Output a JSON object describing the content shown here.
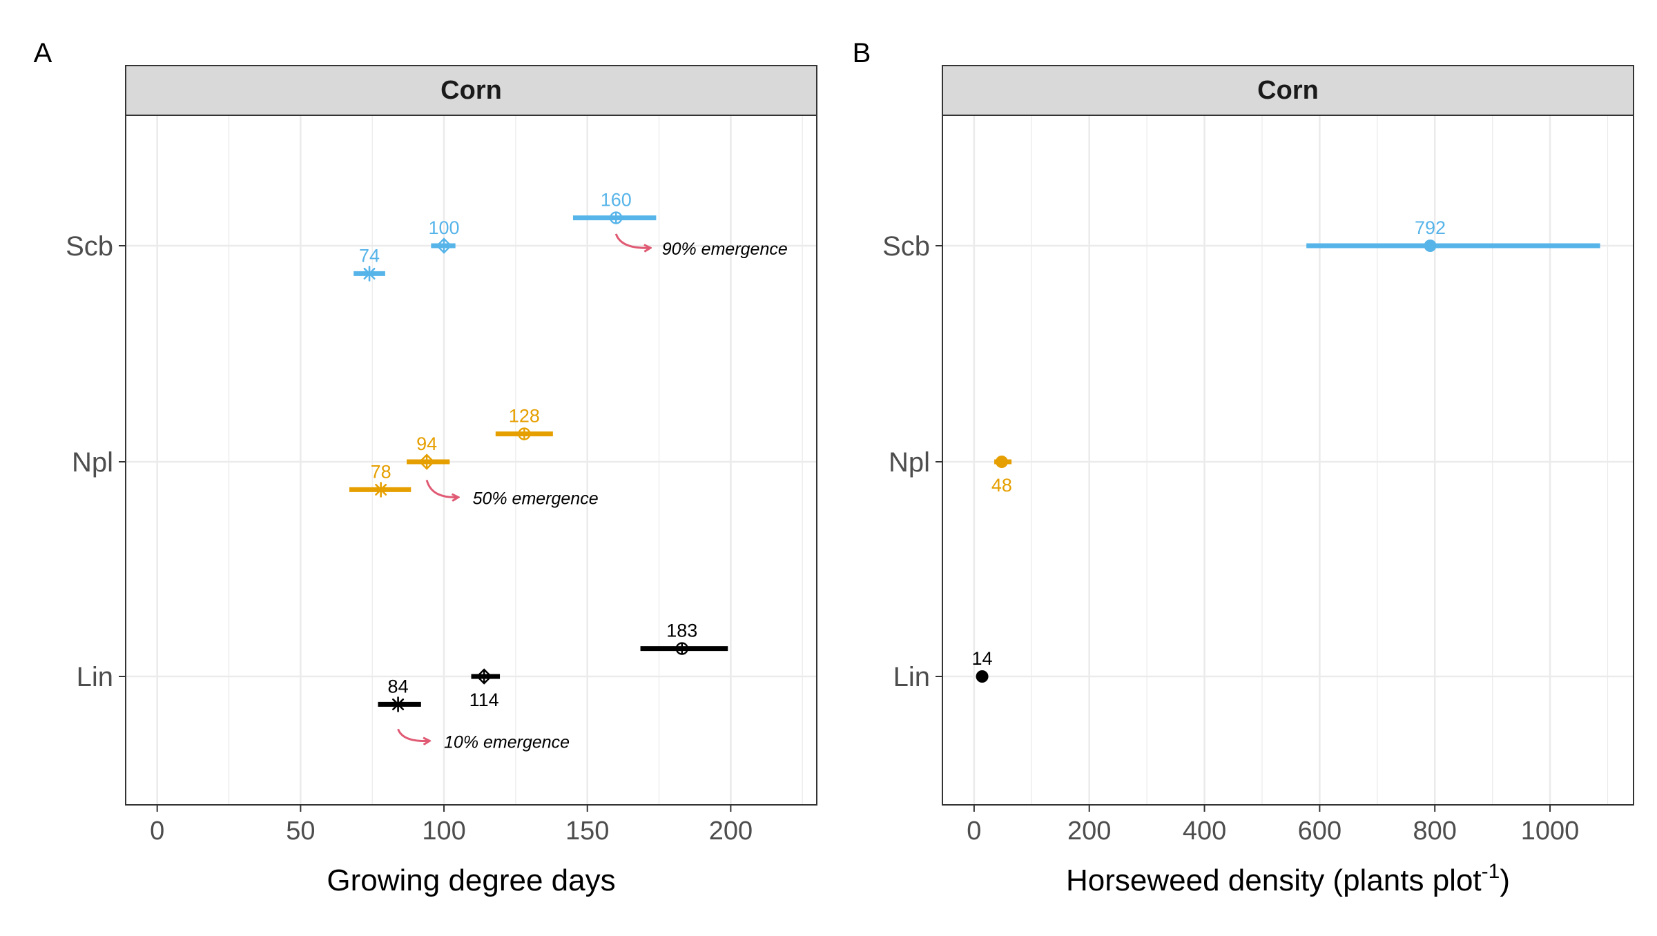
{
  "chart_data": [
    {
      "type": "scatter",
      "panel_label": "A",
      "facet_title": "Corn",
      "xlabel": "Growing degree days",
      "ylabel": "",
      "xlim": [
        -11,
        230
      ],
      "xticks": [
        0,
        50,
        100,
        150,
        200
      ],
      "xticks_minor": [
        25,
        75,
        125,
        175,
        225
      ],
      "categories": [
        "Scb",
        "Npl",
        "Lin"
      ],
      "grid": true,
      "legend": "none",
      "colors": {
        "Scb": "#56B4E9",
        "Npl": "#E69F00",
        "Lin": "#000000",
        "arrow": "#E05A74"
      },
      "series": [
        {
          "category": "Scb",
          "level": "10%",
          "value": 74,
          "lower": 68.5,
          "upper": 79.5,
          "shape": "asterisk",
          "offset": -0.13,
          "label_pos": "above"
        },
        {
          "category": "Scb",
          "level": "50%",
          "value": 100,
          "lower": 95.5,
          "upper": 104,
          "shape": "diamond-plus",
          "offset": 0,
          "label_pos": "above"
        },
        {
          "category": "Scb",
          "level": "90%",
          "value": 160,
          "lower": 145,
          "upper": 174,
          "shape": "circle-plus",
          "offset": 0.13,
          "label_pos": "above"
        },
        {
          "category": "Npl",
          "level": "10%",
          "value": 78,
          "lower": 67,
          "upper": 88.5,
          "shape": "asterisk",
          "offset": -0.13,
          "label_pos": "above"
        },
        {
          "category": "Npl",
          "level": "50%",
          "value": 94,
          "lower": 87,
          "upper": 102,
          "shape": "diamond-plus",
          "offset": 0,
          "label_pos": "above"
        },
        {
          "category": "Npl",
          "level": "90%",
          "value": 128,
          "lower": 118,
          "upper": 138,
          "shape": "circle-plus",
          "offset": 0.13,
          "label_pos": "above"
        },
        {
          "category": "Lin",
          "level": "10%",
          "value": 84,
          "lower": 77,
          "upper": 92,
          "shape": "asterisk",
          "offset": -0.13,
          "label_pos": "above"
        },
        {
          "category": "Lin",
          "level": "50%",
          "value": 114,
          "lower": 109.5,
          "upper": 119.5,
          "shape": "diamond-plus",
          "offset": 0,
          "label_pos": "below"
        },
        {
          "category": "Lin",
          "level": "90%",
          "value": 183,
          "lower": 168.5,
          "upper": 199,
          "shape": "circle-plus",
          "offset": 0.13,
          "label_pos": "above"
        }
      ],
      "annotations": [
        {
          "text": "90% emergence",
          "x_from": 160,
          "y_cat": "Scb",
          "y_from_offset": 0.1,
          "x_to": 172,
          "y_to_offset": -0.01,
          "text_x": 176,
          "text_offset": -0.01
        },
        {
          "text": "50% emergence",
          "x_from": 94,
          "y_cat": "Npl",
          "y_from_offset": -0.04,
          "x_to": 105,
          "y_to_offset": -0.165,
          "text_x": 110,
          "text_offset": -0.165
        },
        {
          "text": "10% emergence",
          "x_from": 84,
          "y_cat": "Lin",
          "y_from_offset": -0.2,
          "x_to": 95,
          "y_to_offset": -0.3,
          "text_x": 100,
          "text_offset": -0.3
        }
      ]
    },
    {
      "type": "scatter",
      "panel_label": "B",
      "facet_title": "Corn",
      "xlabel_main": "Horseweed density (plants plot",
      "xlabel_sup": "-1",
      "xlabel_end": ")",
      "ylabel": "",
      "xlim": [
        -55,
        1145
      ],
      "xticks": [
        0,
        200,
        400,
        600,
        800,
        1000
      ],
      "xticks_minor": [
        100,
        300,
        500,
        700,
        900,
        1100
      ],
      "categories": [
        "Scb",
        "Npl",
        "Lin"
      ],
      "grid": true,
      "legend": "none",
      "colors": {
        "Scb": "#56B4E9",
        "Npl": "#E69F00",
        "Lin": "#000000"
      },
      "series": [
        {
          "category": "Scb",
          "value": 792,
          "lower": 577,
          "upper": 1087,
          "label_pos": "above"
        },
        {
          "category": "Npl",
          "value": 48,
          "lower": 35,
          "upper": 65,
          "label_pos": "below"
        },
        {
          "category": "Lin",
          "value": 14,
          "lower": 11,
          "upper": 17,
          "label_pos": "above"
        }
      ]
    }
  ]
}
